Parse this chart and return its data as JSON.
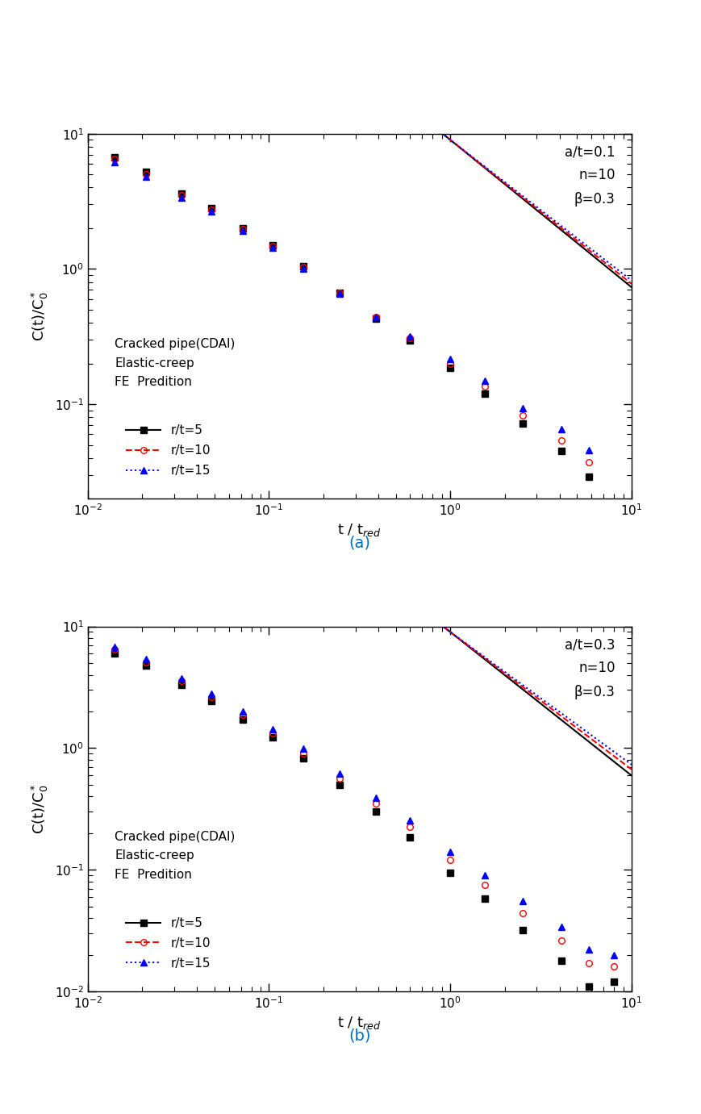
{
  "panels": [
    {
      "label": "(a)",
      "label_color": "#0070C0",
      "annotation": "a/t=0.1\nn=10\nβ=0.3",
      "ylim": [
        0.02,
        10
      ],
      "series": [
        {
          "rt": 5,
          "color": "black",
          "linestyle": "solid",
          "marker": "s",
          "marker_face": "black",
          "A": 9.0,
          "slope": -1.09,
          "fe_x": [
            0.014,
            0.021,
            0.033,
            0.048,
            0.072,
            0.105,
            0.155,
            0.245,
            0.39,
            0.6,
            1.0,
            1.55,
            2.5,
            4.1,
            5.8
          ],
          "fe_y": [
            6.7,
            5.2,
            3.6,
            2.8,
            2.0,
            1.5,
            1.05,
            0.67,
            0.43,
            0.295,
            0.185,
            0.12,
            0.072,
            0.045,
            0.029
          ]
        },
        {
          "rt": 10,
          "color": "red",
          "linestyle": "dashed",
          "marker": "o",
          "marker_face": "none",
          "A": 9.0,
          "slope": -1.065,
          "fe_x": [
            0.014,
            0.021,
            0.033,
            0.048,
            0.072,
            0.105,
            0.155,
            0.245,
            0.39,
            0.6,
            1.0,
            1.55,
            2.5,
            4.1,
            5.8
          ],
          "fe_y": [
            6.5,
            5.0,
            3.5,
            2.75,
            1.98,
            1.48,
            1.03,
            0.665,
            0.44,
            0.31,
            0.2,
            0.135,
            0.083,
            0.054,
            0.037
          ]
        },
        {
          "rt": 15,
          "color": "blue",
          "linestyle": "dotted",
          "marker": "^",
          "marker_face": "blue",
          "A": 9.0,
          "slope": -1.04,
          "fe_x": [
            0.014,
            0.021,
            0.033,
            0.048,
            0.072,
            0.105,
            0.155,
            0.245,
            0.39,
            0.6,
            1.0,
            1.55,
            2.5,
            4.1,
            5.8
          ],
          "fe_y": [
            6.2,
            4.8,
            3.35,
            2.65,
            1.93,
            1.44,
            1.01,
            0.655,
            0.44,
            0.315,
            0.215,
            0.148,
            0.094,
            0.065,
            0.046
          ]
        }
      ]
    },
    {
      "label": "(b)",
      "label_color": "#0070C0",
      "annotation": "a/t=0.3\nn=10\nβ=0.3",
      "ylim": [
        0.01,
        10
      ],
      "series": [
        {
          "rt": 5,
          "color": "black",
          "linestyle": "solid",
          "marker": "s",
          "marker_face": "black",
          "A": 9.0,
          "slope": -1.18,
          "fe_x": [
            0.014,
            0.021,
            0.033,
            0.048,
            0.072,
            0.105,
            0.155,
            0.245,
            0.39,
            0.6,
            1.0,
            1.55,
            2.5,
            4.1,
            5.8,
            8.0
          ],
          "fe_y": [
            6.0,
            4.8,
            3.3,
            2.45,
            1.72,
            1.22,
            0.82,
            0.5,
            0.3,
            0.185,
            0.095,
            0.058,
            0.032,
            0.018,
            0.011,
            0.012
          ]
        },
        {
          "rt": 10,
          "color": "red",
          "linestyle": "dashed",
          "marker": "o",
          "marker_face": "none",
          "A": 9.0,
          "slope": -1.13,
          "fe_x": [
            0.014,
            0.021,
            0.033,
            0.048,
            0.072,
            0.105,
            0.155,
            0.245,
            0.39,
            0.6,
            1.0,
            1.55,
            2.5,
            4.1,
            5.8,
            8.0
          ],
          "fe_y": [
            6.5,
            5.1,
            3.55,
            2.65,
            1.87,
            1.33,
            0.91,
            0.56,
            0.35,
            0.225,
            0.12,
            0.075,
            0.044,
            0.026,
            0.017,
            0.016
          ]
        },
        {
          "rt": 15,
          "color": "blue",
          "linestyle": "dotted",
          "marker": "^",
          "marker_face": "blue",
          "A": 9.0,
          "slope": -1.09,
          "fe_x": [
            0.014,
            0.021,
            0.033,
            0.048,
            0.072,
            0.105,
            0.155,
            0.245,
            0.39,
            0.6,
            1.0,
            1.55,
            2.5,
            4.1,
            5.8,
            8.0
          ],
          "fe_y": [
            6.8,
            5.4,
            3.75,
            2.82,
            2.0,
            1.44,
            0.99,
            0.615,
            0.39,
            0.255,
            0.14,
            0.09,
            0.055,
            0.034,
            0.022,
            0.02
          ]
        }
      ]
    }
  ],
  "xlabel": "t / t$_\\mathrm{red}$",
  "ylabel": "C(t)/C$_0^*$",
  "legend_header": "Cracked pipe(CDAI)\nElastic-creep\nFE  Predition",
  "bg_color": "#ffffff",
  "label_fontsize": 13,
  "tick_fontsize": 11,
  "annotation_fontsize": 12,
  "legend_fontsize": 11
}
